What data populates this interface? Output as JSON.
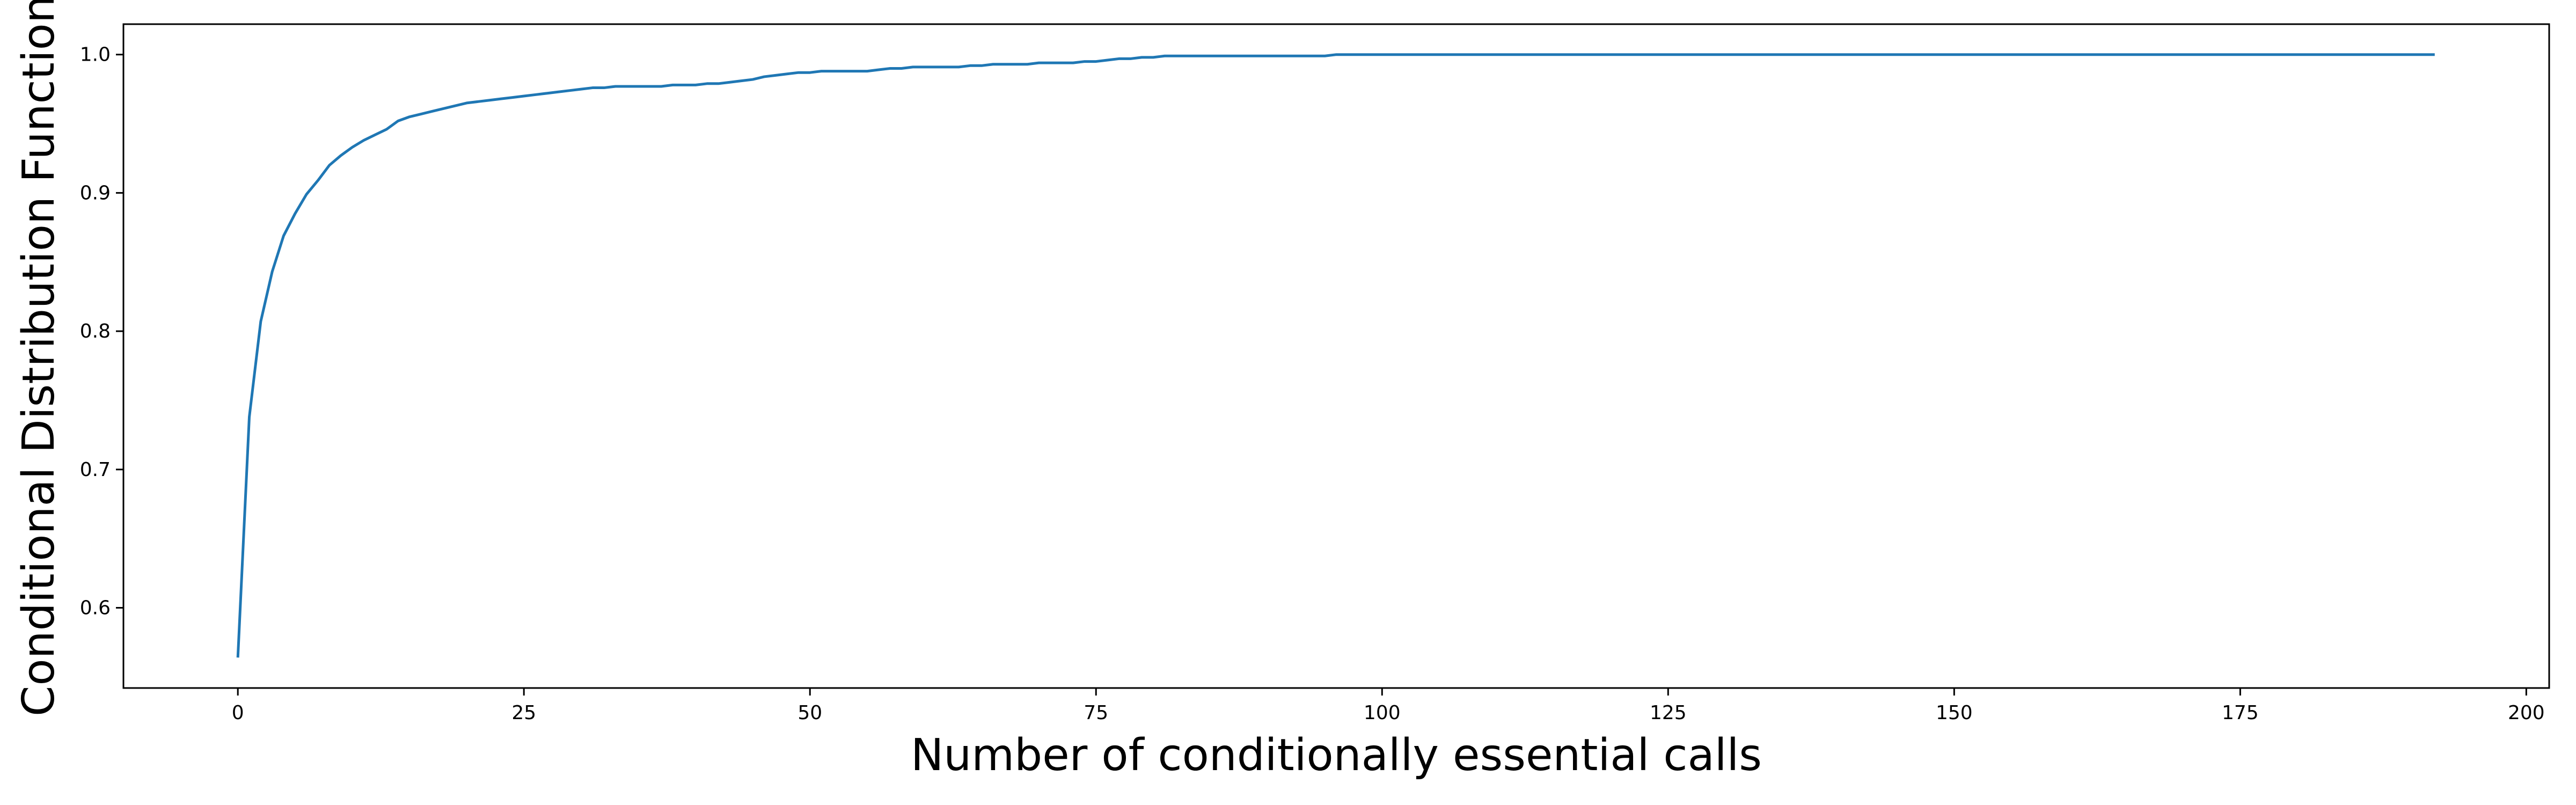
{
  "chart_data": {
    "type": "line",
    "title": "",
    "xlabel": "Number of conditionally essential calls",
    "ylabel": "Conditional Distribution Function",
    "xlim": [
      -10,
      202
    ],
    "ylim": [
      0.542,
      1.022
    ],
    "x_ticks": [
      0,
      25,
      50,
      75,
      100,
      125,
      150,
      175,
      200
    ],
    "y_ticks": [
      0.6,
      0.7,
      0.8,
      0.9,
      1.0
    ],
    "x_tick_labels": [
      "0",
      "25",
      "50",
      "75",
      "100",
      "125",
      "150",
      "175",
      "200"
    ],
    "y_tick_labels": [
      "0.6",
      "0.7",
      "0.8",
      "0.9",
      "1.0"
    ],
    "grid": false,
    "legend": "none",
    "colors": {
      "line": "#1f77b4",
      "axes": "#000000"
    },
    "series": [
      {
        "x": [
          0,
          1,
          2,
          3,
          4,
          5,
          6,
          7,
          8,
          9,
          10,
          11,
          12,
          13,
          14,
          15,
          16,
          17,
          18,
          19,
          20,
          21,
          22,
          23,
          24,
          25,
          26,
          27,
          28,
          29,
          30,
          31,
          32,
          33,
          34,
          35,
          36,
          37,
          38,
          39,
          40,
          41,
          42,
          43,
          44,
          45,
          46,
          47,
          48,
          49,
          50,
          51,
          52,
          53,
          54,
          55,
          56,
          57,
          58,
          59,
          60,
          61,
          62,
          63,
          64,
          65,
          66,
          67,
          68,
          69,
          70,
          71,
          72,
          73,
          74,
          75,
          76,
          77,
          78,
          79,
          80,
          81,
          82,
          83,
          84,
          85,
          86,
          87,
          88,
          89,
          90,
          95,
          96,
          97,
          100,
          110,
          120,
          130,
          140,
          150,
          160,
          170,
          180,
          192
        ],
        "y": [
          0.564,
          0.738,
          0.807,
          0.843,
          0.869,
          0.885,
          0.899,
          0.909,
          0.92,
          0.927,
          0.933,
          0.938,
          0.942,
          0.946,
          0.952,
          0.955,
          0.957,
          0.959,
          0.961,
          0.963,
          0.965,
          0.966,
          0.967,
          0.968,
          0.969,
          0.97,
          0.971,
          0.972,
          0.973,
          0.974,
          0.975,
          0.976,
          0.976,
          0.977,
          0.977,
          0.977,
          0.977,
          0.977,
          0.978,
          0.978,
          0.978,
          0.979,
          0.979,
          0.98,
          0.981,
          0.982,
          0.984,
          0.985,
          0.986,
          0.987,
          0.987,
          0.988,
          0.988,
          0.988,
          0.988,
          0.988,
          0.989,
          0.99,
          0.99,
          0.991,
          0.991,
          0.991,
          0.991,
          0.991,
          0.992,
          0.992,
          0.993,
          0.993,
          0.993,
          0.993,
          0.994,
          0.994,
          0.994,
          0.994,
          0.995,
          0.995,
          0.996,
          0.997,
          0.997,
          0.998,
          0.998,
          0.999,
          0.999,
          0.999,
          0.999,
          0.999,
          0.999,
          0.999,
          0.999,
          0.999,
          0.999,
          0.999,
          1.0,
          1.0,
          1.0,
          1.0,
          1.0,
          1.0,
          1.0,
          1.0,
          1.0,
          1.0,
          1.0,
          1.0
        ]
      }
    ]
  }
}
